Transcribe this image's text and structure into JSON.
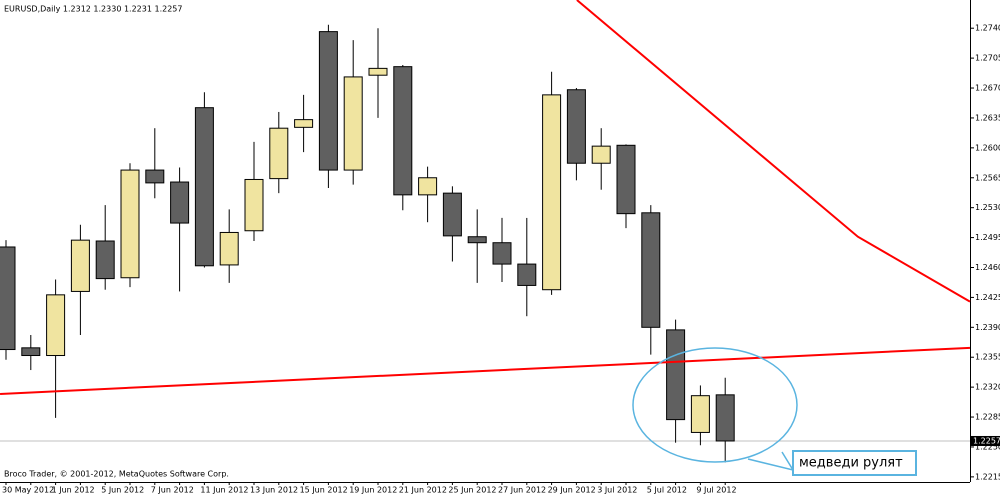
{
  "chart_data": {
    "type": "candlestick",
    "title": "EURUSD,Daily  1.2312 1.2330 1.2231 1.2257",
    "footer": "Broco Trader, © 2001-2012, MetaQuotes Software Corp.",
    "annotation": "медведи рулят",
    "categories": [
      "30 May 2012",
      null,
      "1 Jun 2012",
      null,
      "5 Jun 2012",
      null,
      "7 Jun 2012",
      null,
      "11 Jun 2012",
      null,
      "13 Jun 2012",
      null,
      "15 Jun 2012",
      null,
      "19 Jun 2012",
      null,
      "21 Jun 2012",
      null,
      "25 Jun 2012",
      null,
      "27 Jun 2012",
      null,
      "29 Jun 2012",
      null,
      "3 Jul 2012",
      null,
      "5 Jul 2012",
      null,
      "9 Jul 2012",
      null
    ],
    "open": [
      1.2484,
      1.2366,
      1.2357,
      1.2432,
      1.2491,
      1.2448,
      1.2574,
      1.256,
      1.2647,
      1.2463,
      1.2503,
      1.2564,
      1.2624,
      1.2736,
      1.2574,
      1.2685,
      1.2695,
      1.2545,
      1.2547,
      1.2496,
      1.2489,
      1.2464,
      1.2434,
      1.2668,
      1.2582,
      1.2603,
      1.2524,
      1.2387,
      1.2267,
      1.2311
    ],
    "high": [
      1.2492,
      1.2381,
      1.2446,
      1.251,
      1.2533,
      1.2582,
      1.2623,
      1.2577,
      1.2665,
      1.2528,
      1.2607,
      1.2642,
      1.2662,
      1.2744,
      1.2726,
      1.274,
      1.2697,
      1.2578,
      1.2555,
      1.2528,
      1.2518,
      1.2518,
      1.2689,
      1.267,
      1.2623,
      1.2604,
      1.2533,
      1.2399,
      1.2322,
      1.2331
    ],
    "low": [
      1.2352,
      1.234,
      1.2284,
      1.2381,
      1.2434,
      1.2437,
      1.2541,
      1.2432,
      1.246,
      1.2442,
      1.2491,
      1.2547,
      1.2595,
      1.2553,
      1.2557,
      1.2635,
      1.2527,
      1.2513,
      1.2467,
      1.2442,
      1.2443,
      1.2403,
      1.2428,
      1.2562,
      1.2551,
      1.2506,
      1.2358,
      1.2255,
      1.2252,
      1.2232
    ],
    "close": [
      1.2364,
      1.2357,
      1.2428,
      1.2492,
      1.2447,
      1.2574,
      1.2559,
      1.2512,
      1.2462,
      1.2501,
      1.2563,
      1.2623,
      1.2633,
      1.2574,
      1.2683,
      1.2693,
      1.2545,
      1.2565,
      1.2497,
      1.2489,
      1.2464,
      1.2439,
      1.2662,
      1.2582,
      1.2602,
      1.2523,
      1.239,
      1.2282,
      1.231,
      1.2257
    ],
    "up_color": "#f0e4a0",
    "down_color": "#606060",
    "current_price": 1.2257,
    "trendlines": [
      {
        "color": "#ff0000",
        "x": [
          -0.24,
          38.87
        ],
        "y": [
          1.2312,
          1.2366
        ]
      },
      {
        "color": "#ff0000",
        "x": [
          23.02,
          34.35,
          38.87
        ],
        "y": [
          1.2773,
          1.2496,
          1.242
        ]
      }
    ],
    "ylim": [
      1.2209,
      1.2773
    ],
    "yticks": [
      {
        "value": 1.274,
        "label": "1.2740"
      },
      1.2705,
      {
        "value": 1.267,
        "label": "1.2670"
      },
      1.2635,
      {
        "value": 1.26,
        "label": "1.2600"
      },
      1.2565,
      {
        "value": 1.253,
        "label": "1.2530"
      },
      1.2495,
      {
        "value": 1.246,
        "label": "1.2460"
      },
      1.2425,
      {
        "value": 1.239,
        "label": "1.2390"
      },
      1.2355,
      {
        "value": 1.232,
        "label": "1.2320"
      },
      1.2285,
      {
        "value": 1.225,
        "label": "1.2250"
      },
      1.2215
    ]
  }
}
